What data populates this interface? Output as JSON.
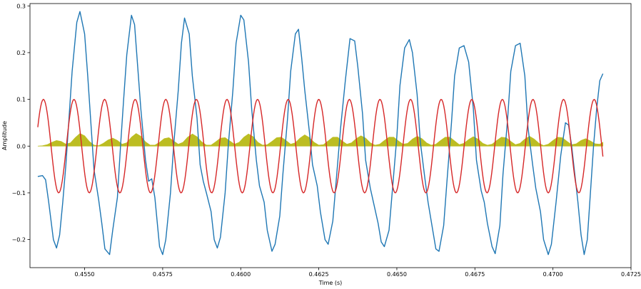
{
  "chart_data": {
    "type": "line",
    "xlabel": "Time (s)",
    "ylabel": "Amplitude",
    "xlim": [
      0.45325,
      0.4725
    ],
    "ylim": [
      -0.26,
      0.305
    ],
    "xticks": [
      0.455,
      0.4575,
      0.46,
      0.4625,
      0.465,
      0.4675,
      0.47,
      0.4725
    ],
    "xtick_labels": [
      "0.4550",
      "0.4575",
      "0.4600",
      "0.4625",
      "0.4650",
      "0.4675",
      "0.4700",
      "0.4725"
    ],
    "yticks": [
      -0.2,
      -0.1,
      0.0,
      0.1,
      0.2,
      0.3
    ],
    "ytick_labels": [
      "−0.2",
      "−0.1",
      "0.0",
      "0.1",
      "0.2",
      "0.3"
    ],
    "grid": false,
    "series": [
      {
        "color": "#bcbd22",
        "style": "filled-area",
        "x": [
          0.4535,
          0.45365,
          0.4538,
          0.45395,
          0.4541,
          0.45425,
          0.4544,
          0.45455,
          0.4547,
          0.45485,
          0.455,
          0.45515,
          0.4553,
          0.45545,
          0.4556,
          0.45575,
          0.4559,
          0.45605,
          0.4562,
          0.45635,
          0.4565,
          0.45665,
          0.4568,
          0.45695,
          0.4571,
          0.45725,
          0.4574,
          0.45755,
          0.4577,
          0.45785,
          0.458,
          0.45815,
          0.4583,
          0.45845,
          0.4586,
          0.45875,
          0.4589,
          0.45905,
          0.4592,
          0.45935,
          0.4595,
          0.45965,
          0.4598,
          0.45995,
          0.4601,
          0.46025,
          0.4604,
          0.46055,
          0.4607,
          0.46085,
          0.461,
          0.46115,
          0.4613,
          0.46145,
          0.4616,
          0.46175,
          0.4619,
          0.46205,
          0.4622,
          0.46235,
          0.4625,
          0.46265,
          0.4628,
          0.46295,
          0.4631,
          0.46325,
          0.4634,
          0.46355,
          0.4637,
          0.46385,
          0.464,
          0.46415,
          0.4643,
          0.46445,
          0.4646,
          0.46475,
          0.4649,
          0.46505,
          0.4652,
          0.46535,
          0.4655,
          0.46565,
          0.4658,
          0.46595,
          0.4661,
          0.46625,
          0.4664,
          0.46655,
          0.4667,
          0.46685,
          0.467,
          0.46715,
          0.4673,
          0.46745,
          0.4676,
          0.46775,
          0.4679,
          0.46805,
          0.4682,
          0.46835,
          0.4685,
          0.46865,
          0.4688,
          0.46895,
          0.4691,
          0.46925,
          0.4694,
          0.46955,
          0.4697,
          0.46985,
          0.47,
          0.47015,
          0.4703,
          0.47045,
          0.4706,
          0.47075,
          0.4709,
          0.47105,
          0.4712,
          0.47135,
          0.4715,
          0.4716
        ],
        "values": [
          0.0,
          0.0007,
          0.003,
          0.008,
          0.012,
          0.01,
          0.004,
          0.007,
          0.018,
          0.027,
          0.022,
          0.01,
          0.002,
          0.001,
          0.006,
          0.013,
          0.017,
          0.012,
          0.004,
          0.007,
          0.019,
          0.027,
          0.021,
          0.009,
          0.002,
          0.002,
          0.008,
          0.016,
          0.018,
          0.011,
          0.004,
          0.008,
          0.019,
          0.026,
          0.02,
          0.009,
          0.002,
          0.002,
          0.009,
          0.017,
          0.018,
          0.011,
          0.004,
          0.008,
          0.019,
          0.026,
          0.02,
          0.008,
          0.002,
          0.003,
          0.01,
          0.018,
          0.019,
          0.012,
          0.004,
          0.007,
          0.017,
          0.024,
          0.018,
          0.008,
          0.002,
          0.003,
          0.011,
          0.019,
          0.019,
          0.011,
          0.004,
          0.007,
          0.016,
          0.022,
          0.017,
          0.007,
          0.002,
          0.004,
          0.012,
          0.019,
          0.019,
          0.011,
          0.004,
          0.006,
          0.015,
          0.021,
          0.016,
          0.007,
          0.002,
          0.004,
          0.012,
          0.019,
          0.019,
          0.011,
          0.003,
          0.006,
          0.014,
          0.02,
          0.015,
          0.006,
          0.002,
          0.004,
          0.012,
          0.019,
          0.018,
          0.01,
          0.003,
          0.006,
          0.015,
          0.021,
          0.015,
          0.006,
          0.001,
          0.004,
          0.012,
          0.019,
          0.018,
          0.01,
          0.003,
          0.005,
          0.012,
          0.016,
          0.011,
          0.005,
          0.004,
          0.008
        ]
      },
      {
        "color": "#1f77b4",
        "style": "line",
        "x": [
          0.4535,
          0.45365,
          0.45375,
          0.45385,
          0.454,
          0.4541,
          0.4542,
          0.4543,
          0.4544,
          0.4545,
          0.4546,
          0.4547,
          0.45475,
          0.45485,
          0.455,
          0.4551,
          0.4552,
          0.4553,
          0.45545,
          0.45555,
          0.45565,
          0.4558,
          0.4559,
          0.45605,
          0.45615,
          0.45625,
          0.45635,
          0.4565,
          0.4566,
          0.4567,
          0.4568,
          0.45695,
          0.45705,
          0.45715,
          0.45725,
          0.4574,
          0.4575,
          0.4576,
          0.45775,
          0.45785,
          0.458,
          0.4581,
          0.4582,
          0.45835,
          0.45845,
          0.4586,
          0.4587,
          0.4588,
          0.4589,
          0.45905,
          0.45915,
          0.45925,
          0.45935,
          0.4595,
          0.4596,
          0.45975,
          0.45985,
          0.46,
          0.4601,
          0.46025,
          0.46035,
          0.4605,
          0.4606,
          0.46075,
          0.46085,
          0.461,
          0.4611,
          0.46125,
          0.46135,
          0.4615,
          0.4616,
          0.46175,
          0.46185,
          0.46195,
          0.46205,
          0.4622,
          0.4623,
          0.46245,
          0.46255,
          0.4627,
          0.4628,
          0.46295,
          0.46305,
          0.4632,
          0.46335,
          0.4635,
          0.46365,
          0.46375,
          0.4639,
          0.464,
          0.46415,
          0.46425,
          0.4644,
          0.4645,
          0.4646,
          0.46475,
          0.46485,
          0.465,
          0.4651,
          0.46525,
          0.4654,
          0.4655,
          0.46565,
          0.46575,
          0.4659,
          0.466,
          0.46615,
          0.46625,
          0.46635,
          0.4665,
          0.4666,
          0.46675,
          0.46685,
          0.467,
          0.46715,
          0.4673,
          0.46745,
          0.46755,
          0.4677,
          0.4678,
          0.4679,
          0.46805,
          0.46815,
          0.4683,
          0.4684,
          0.46855,
          0.46865,
          0.4688,
          0.46895,
          0.4691,
          0.4692,
          0.46935,
          0.46945,
          0.4696,
          0.4697,
          0.46985,
          0.46995,
          0.4701,
          0.47025,
          0.4704,
          0.4705,
          0.4706,
          0.4707,
          0.4708,
          0.4709,
          0.471,
          0.4711,
          0.4712,
          0.4713,
          0.4714,
          0.4715,
          0.4716
        ],
        "values": [
          -0.065,
          -0.063,
          -0.072,
          -0.12,
          -0.2,
          -0.218,
          -0.19,
          -0.12,
          -0.04,
          0.06,
          0.16,
          0.23,
          0.265,
          0.288,
          0.24,
          0.15,
          0.05,
          -0.05,
          -0.115,
          -0.165,
          -0.22,
          -0.232,
          -0.18,
          -0.11,
          0.0,
          0.1,
          0.195,
          0.28,
          0.26,
          0.17,
          0.08,
          -0.03,
          -0.075,
          -0.07,
          -0.11,
          -0.215,
          -0.232,
          -0.2,
          -0.1,
          0.0,
          0.12,
          0.22,
          0.274,
          0.24,
          0.15,
          0.06,
          -0.04,
          -0.075,
          -0.1,
          -0.14,
          -0.2,
          -0.218,
          -0.195,
          -0.1,
          0.0,
          0.12,
          0.22,
          0.28,
          0.27,
          0.18,
          0.08,
          -0.03,
          -0.085,
          -0.12,
          -0.18,
          -0.225,
          -0.21,
          -0.15,
          -0.06,
          0.06,
          0.16,
          0.24,
          0.25,
          0.19,
          0.12,
          0.03,
          -0.04,
          -0.085,
          -0.14,
          -0.2,
          -0.21,
          -0.16,
          -0.08,
          0.04,
          0.14,
          0.23,
          0.225,
          0.17,
          0.07,
          -0.03,
          -0.09,
          -0.12,
          -0.165,
          -0.205,
          -0.215,
          -0.18,
          -0.1,
          0.02,
          0.13,
          0.21,
          0.228,
          0.2,
          0.11,
          0.01,
          -0.07,
          -0.12,
          -0.18,
          -0.22,
          -0.225,
          -0.17,
          -0.08,
          0.05,
          0.15,
          0.21,
          0.215,
          0.18,
          0.08,
          -0.03,
          -0.095,
          -0.12,
          -0.165,
          -0.215,
          -0.23,
          -0.17,
          -0.06,
          0.06,
          0.16,
          0.215,
          0.22,
          0.15,
          0.04,
          -0.04,
          -0.09,
          -0.14,
          -0.2,
          -0.232,
          -0.21,
          -0.12,
          -0.02,
          0.05,
          0.045,
          0.0,
          -0.06,
          -0.12,
          -0.19,
          -0.232,
          -0.2,
          -0.1,
          0.0,
          0.08,
          0.14,
          0.155
        ]
      },
      {
        "color": "#d62728",
        "style": "sine",
        "amplitude": 0.1,
        "period": 0.00098,
        "phase_peak": 0.45466,
        "x_start": 0.4535,
        "x_end": 0.4716
      }
    ]
  }
}
